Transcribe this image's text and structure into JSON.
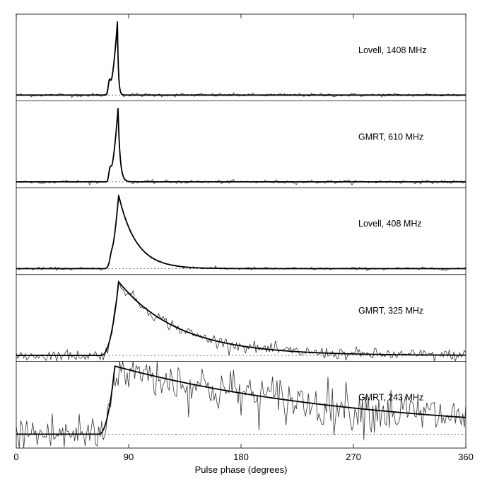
{
  "chart_data": {
    "type": "line",
    "xlabel": "Pulse phase (degrees)",
    "xlim": [
      0,
      360
    ],
    "xticks": [
      0,
      90,
      180,
      270,
      360
    ],
    "panels": [
      {
        "label": "Lovell, 1408 MHz",
        "ylim": [
          -0.08,
          1.1
        ],
        "model": {
          "onset": 72,
          "peak_phase": 81,
          "width": 1.6,
          "tau": 0.8,
          "precursor_phase": 74.5,
          "precursor_amp": 0.15,
          "amplitude": 1.0
        },
        "noise_rms": 0.012
      },
      {
        "label": "GMRT, 610 MHz",
        "ylim": [
          -0.08,
          1.1
        ],
        "model": {
          "onset": 72,
          "peak_phase": 81.5,
          "width": 1.8,
          "tau": 1.6,
          "precursor_phase": 75,
          "precursor_amp": 0.12,
          "amplitude": 1.0
        },
        "noise_rms": 0.012
      },
      {
        "label": "Lovell, 408 MHz",
        "ylim": [
          -0.08,
          1.1
        ],
        "model": {
          "onset": 71,
          "peak_phase": 82,
          "width": 2.5,
          "tau": 14,
          "precursor_phase": 76,
          "precursor_amp": 0.05,
          "amplitude": 1.0
        },
        "noise_rms": 0.01
      },
      {
        "label": "GMRT, 325 MHz",
        "ylim": [
          -0.08,
          1.1
        ],
        "model": {
          "onset": 68,
          "peak_phase": 82,
          "width": 3,
          "tau": 48,
          "precursor_phase": 75,
          "precursor_amp": 0.0,
          "amplitude": 1.0
        },
        "noise_rms": 0.04
      },
      {
        "label": "GMRT, 243 MHz",
        "ylim": [
          -0.2,
          1.05
        ],
        "model": {
          "onset": 66,
          "peak_phase": 79,
          "width": 3,
          "tau": 200,
          "precursor_phase": 75,
          "precursor_amp": 0.0,
          "amplitude": 0.98
        },
        "noise_rms": 0.17
      }
    ]
  }
}
